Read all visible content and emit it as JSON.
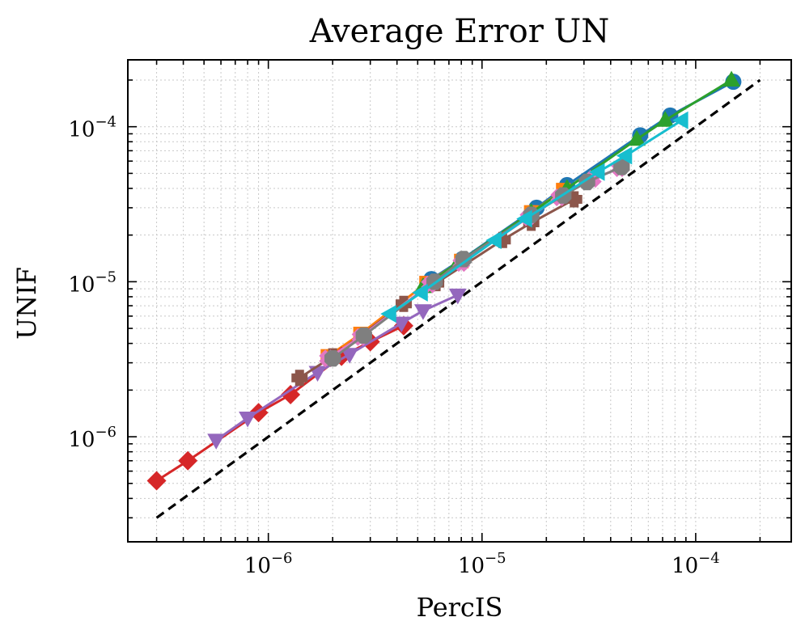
{
  "chart_data": {
    "type": "line",
    "title": "Average Error UN",
    "xlabel": "PercIS",
    "ylabel": "UNIF",
    "xscale": "log",
    "yscale": "log",
    "xlim": [
      2.2e-07,
      0.00028
    ],
    "ylim": [
      2.1e-07,
      0.00027
    ],
    "grid": true,
    "legend": false,
    "x_ticks": [
      1e-06,
      1e-05,
      0.0001
    ],
    "y_ticks": [
      1e-06,
      1e-05,
      0.0001
    ],
    "reference_line": {
      "style": "dashed",
      "color": "#000000",
      "x": [
        3e-07,
        0.0002
      ],
      "y": [
        3e-07,
        0.0002
      ]
    },
    "series": [
      {
        "color": "#1f77b4",
        "marker": "circle",
        "x": [
          5.8e-06,
          8.1e-06,
          1.8e-05,
          2.5e-05,
          5.5e-05,
          7.6e-05,
          0.00015
        ],
        "y": [
          1.04e-05,
          1.4e-05,
          3e-05,
          4.2e-05,
          8.8e-05,
          0.000118,
          0.000195
        ]
      },
      {
        "color": "#ff7f0e",
        "marker": "square",
        "x": [
          1.9e-06,
          2.7e-06,
          5.5e-06,
          8e-06,
          1.7e-05,
          2.4e-05
        ],
        "y": [
          3.3e-06,
          4.6e-06,
          9.8e-06,
          1.36e-05,
          2.8e-05,
          3.9e-05
        ]
      },
      {
        "color": "#2ca02c",
        "marker": "triangle-up",
        "x": [
          5.3e-06,
          7.7e-06,
          1.7e-05,
          2.5e-05,
          5.3e-05,
          7.2e-05,
          0.000147
        ],
        "y": [
          9.3e-06,
          1.32e-05,
          2.8e-05,
          4e-05,
          8.3e-05,
          0.00011,
          0.0002
        ]
      },
      {
        "color": "#d62728",
        "marker": "diamond",
        "x": [
          3e-07,
          4.2e-07,
          9e-07,
          1.27e-06,
          2.2e-06,
          3e-06,
          4.3e-06
        ],
        "y": [
          5.2e-07,
          7e-07,
          1.43e-06,
          1.87e-06,
          3.3e-06,
          4.1e-06,
          5.2e-06
        ]
      },
      {
        "color": "#9467bd",
        "marker": "triangle-down",
        "x": [
          5.7e-07,
          8e-07,
          1.7e-06,
          2.4e-06,
          4.2e-06,
          5.3e-06,
          7.7e-06
        ],
        "y": [
          9.5e-07,
          1.32e-06,
          2.6e-06,
          3.4e-06,
          5.4e-06,
          6.5e-06,
          8.2e-06
        ]
      },
      {
        "color": "#8c564b",
        "marker": "plus",
        "x": [
          1.4e-06,
          2e-06,
          4.3e-06,
          6.1e-06,
          1.25e-05,
          1.7e-05,
          2.7e-05
        ],
        "y": [
          2.4e-06,
          3.3e-06,
          7.2e-06,
          9.8e-06,
          1.86e-05,
          2.4e-05,
          3.4e-05
        ]
      },
      {
        "color": "#e377c2",
        "marker": "x",
        "x": [
          1.9e-06,
          2.7e-06,
          5.7e-06,
          8e-06,
          1.65e-05,
          2.3e-05,
          3.3e-05,
          4.4e-05
        ],
        "y": [
          3.2e-06,
          4.4e-06,
          9.6e-06,
          1.32e-05,
          2.6e-05,
          3.5e-05,
          4.6e-05,
          5.4e-05
        ]
      },
      {
        "color": "#7f7f7f",
        "marker": "octagon",
        "x": [
          2e-06,
          2.8e-06,
          6e-06,
          8.2e-06,
          1.7e-05,
          2.4e-05,
          3.1e-05,
          4.5e-05
        ],
        "y": [
          3.2e-06,
          4.5e-06,
          1e-05,
          1.4e-05,
          2.7e-05,
          3.6e-05,
          4.4e-05,
          5.5e-05
        ]
      },
      {
        "color": "#17becf",
        "marker": "triangle-left",
        "x": [
          3.7e-06,
          5.2e-06,
          1.15e-05,
          1.6e-05,
          3.5e-05,
          4.7e-05,
          8.6e-05
        ],
        "y": [
          6.2e-06,
          8.5e-06,
          1.85e-05,
          2.55e-05,
          5.1e-05,
          6.5e-05,
          0.00011
        ]
      }
    ]
  }
}
